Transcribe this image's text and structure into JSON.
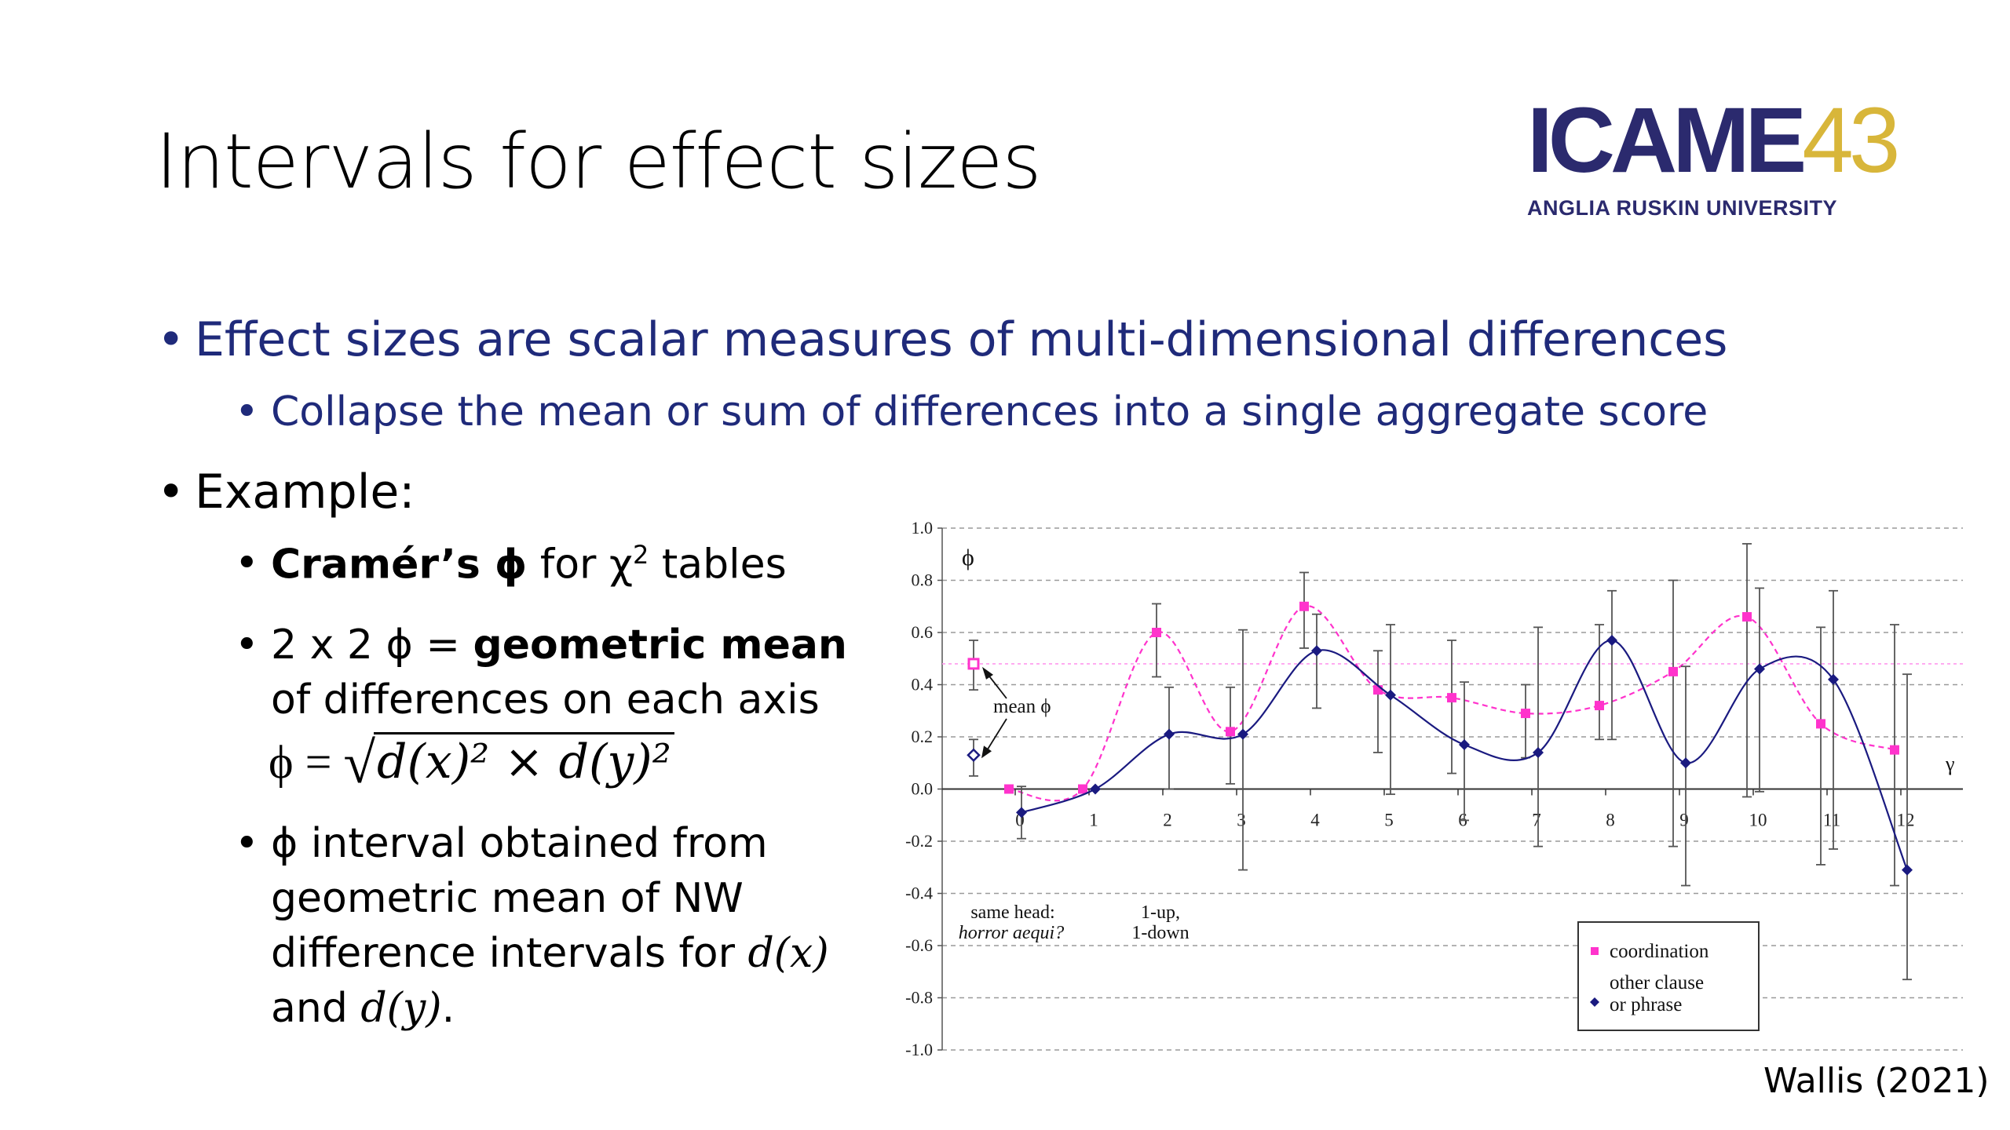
{
  "slide": {
    "title": "Intervals for effect sizes",
    "credit": "Wallis (2021)"
  },
  "logo": {
    "main_a": "ICAME",
    "main_b": "43",
    "sub": "ANGLIA RUSKIN UNIVERSITY",
    "colors": {
      "navy": "#2b2a6e",
      "gold": "#d8b63a"
    }
  },
  "bullets": {
    "b1": "Effect sizes are scalar measures of multi-dimensional differences",
    "b1_1": "Collapse the mean or sum of differences into a single aggregate score",
    "b2": "Example:",
    "b2_1_bold": "Cramér’s ϕ",
    "b2_1_rest": " for χ",
    "b2_1_sup": "2",
    "b2_1_end": " tables",
    "b2_2_a": "2 x 2 ϕ = ",
    "b2_2_bold": "geometric mean",
    "b2_2_b": "of differences on each axis",
    "formula_lhs": "ϕ = ",
    "formula_radicand": "d(x)² × d(y)²",
    "b2_3_a": "ϕ interval obtained from geometric mean of NW difference intervals for ",
    "b2_3_dx": "d(x)",
    "b2_3_and": " and ",
    "b2_3_dy": "d(y)",
    "b2_3_end": "."
  },
  "colors": {
    "bullet_navy": "#1f2a7a",
    "coordination": "#ff33cc",
    "other": "#1a1a80"
  },
  "chart_data": {
    "type": "line",
    "ylim": [
      -1.0,
      1.0
    ],
    "yticks": [
      1.0,
      0.8,
      0.6,
      0.4,
      0.2,
      0.0,
      -0.2,
      -0.4,
      -0.6,
      -0.8,
      -1.0
    ],
    "ytick_labels": [
      "1.0",
      "0.8",
      "0.6",
      "0.4",
      "0.2",
      "0.0",
      "-0.2",
      "-0.4",
      "-0.6",
      "-0.8",
      "-1.0"
    ],
    "xticks": [
      0,
      1,
      2,
      3,
      4,
      5,
      6,
      7,
      8,
      9,
      10,
      11,
      12
    ],
    "xtick_labels": [
      "0",
      "1",
      "2",
      "3",
      "4",
      "5",
      "6",
      "7",
      "8",
      "9",
      "10",
      "11",
      "12"
    ],
    "ylabel": "ϕ",
    "xlabel": "γ",
    "grid": "dashed horizontal",
    "reference_line": 0.48,
    "mean_label": "mean ϕ",
    "annotations": [
      {
        "line1": "same head:",
        "line2": "horror aequi?"
      },
      {
        "line1": "1-up,",
        "line2": "1-down"
      }
    ],
    "legend": {
      "position": "bottom-right"
    },
    "series": [
      {
        "name": "coordination",
        "color": "#ff33cc",
        "style": "dashed",
        "mean": {
          "value": 0.48,
          "lo": 0.38,
          "hi": 0.57
        },
        "points": [
          {
            "x": 0,
            "y": 0.0
          },
          {
            "x": 1,
            "y": 0.0
          },
          {
            "x": 2,
            "y": 0.6,
            "lo": 0.43,
            "hi": 0.71
          },
          {
            "x": 3,
            "y": 0.22,
            "lo": 0.02,
            "hi": 0.39
          },
          {
            "x": 4,
            "y": 0.7,
            "lo": 0.54,
            "hi": 0.83
          },
          {
            "x": 5,
            "y": 0.38,
            "lo": 0.14,
            "hi": 0.53
          },
          {
            "x": 6,
            "y": 0.35,
            "lo": 0.06,
            "hi": 0.57
          },
          {
            "x": 7,
            "y": 0.29,
            "lo": 0.12,
            "hi": 0.4
          },
          {
            "x": 8,
            "y": 0.32,
            "lo": 0.19,
            "hi": 0.63
          },
          {
            "x": 9,
            "y": 0.45,
            "lo": -0.22,
            "hi": 0.8
          },
          {
            "x": 10,
            "y": 0.66,
            "lo": -0.03,
            "hi": 0.94
          },
          {
            "x": 11,
            "y": 0.25,
            "lo": -0.29,
            "hi": 0.62
          },
          {
            "x": 12,
            "y": 0.15,
            "lo": -0.37,
            "hi": 0.63
          }
        ]
      },
      {
        "name": "other clause or phrase",
        "color": "#1a1a80",
        "style": "solid",
        "mean": {
          "value": 0.13,
          "lo": 0.05,
          "hi": 0.19
        },
        "points": [
          {
            "x": 0,
            "y": -0.09,
            "lo": -0.19,
            "hi": 0.01
          },
          {
            "x": 1,
            "y": 0.0
          },
          {
            "x": 2,
            "y": 0.21,
            "lo": 0.0,
            "hi": 0.39
          },
          {
            "x": 3,
            "y": 0.21,
            "lo": -0.31,
            "hi": 0.61
          },
          {
            "x": 4,
            "y": 0.53,
            "lo": 0.31,
            "hi": 0.67
          },
          {
            "x": 5,
            "y": 0.36,
            "lo": -0.02,
            "hi": 0.63
          },
          {
            "x": 6,
            "y": 0.17,
            "lo": -0.12,
            "hi": 0.41
          },
          {
            "x": 7,
            "y": 0.14,
            "lo": -0.22,
            "hi": 0.62
          },
          {
            "x": 8,
            "y": 0.57,
            "lo": 0.19,
            "hi": 0.76
          },
          {
            "x": 9,
            "y": 0.1,
            "lo": -0.37,
            "hi": 0.47
          },
          {
            "x": 10,
            "y": 0.46,
            "lo": -0.01,
            "hi": 0.77
          },
          {
            "x": 11,
            "y": 0.42,
            "lo": -0.23,
            "hi": 0.76
          },
          {
            "x": 12,
            "y": -0.31,
            "lo": -0.73,
            "hi": 0.44
          }
        ]
      }
    ]
  }
}
